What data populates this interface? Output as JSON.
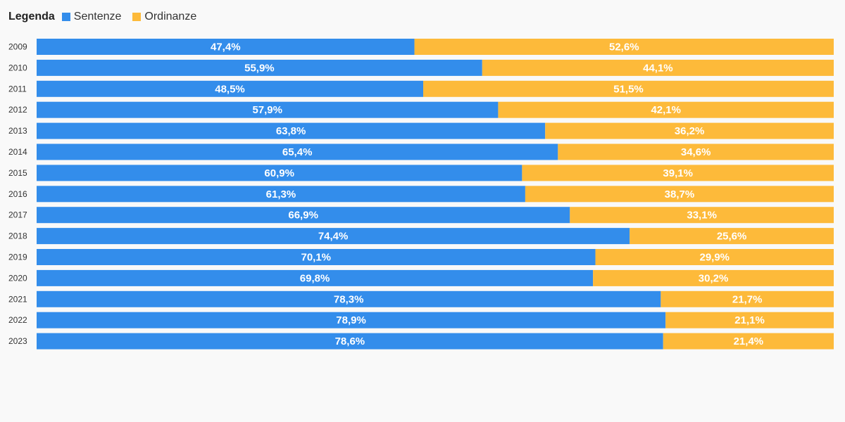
{
  "legend": {
    "title": "Legenda",
    "items": [
      {
        "label": "Sentenze",
        "color": "#338deb"
      },
      {
        "label": "Ordinanze",
        "color": "#fdba3a"
      }
    ]
  },
  "chart_data": {
    "type": "bar",
    "orientation": "horizontal",
    "stacked": true,
    "normalized_percent": true,
    "categories": [
      "2009",
      "2010",
      "2011",
      "2012",
      "2013",
      "2014",
      "2015",
      "2016",
      "2017",
      "2018",
      "2019",
      "2020",
      "2021",
      "2022",
      "2023"
    ],
    "series": [
      {
        "name": "Sentenze",
        "color": "#338deb",
        "values": [
          47.4,
          55.9,
          48.5,
          57.9,
          63.8,
          65.4,
          60.9,
          61.3,
          66.9,
          74.4,
          70.1,
          69.8,
          78.3,
          78.9,
          78.6
        ],
        "labels": [
          "47,4%",
          "55,9%",
          "48,5%",
          "57,9%",
          "63,8%",
          "65,4%",
          "60,9%",
          "61,3%",
          "66,9%",
          "74,4%",
          "70,1%",
          "69,8%",
          "78,3%",
          "78,9%",
          "78,6%"
        ]
      },
      {
        "name": "Ordinanze",
        "color": "#fdba3a",
        "values": [
          52.6,
          44.1,
          51.5,
          42.1,
          36.2,
          34.6,
          39.1,
          38.7,
          33.1,
          25.6,
          29.9,
          30.2,
          21.7,
          21.1,
          21.4
        ],
        "labels": [
          "52,6%",
          "44,1%",
          "51,5%",
          "42,1%",
          "36,2%",
          "34,6%",
          "39,1%",
          "38,7%",
          "33,1%",
          "25,6%",
          "29,9%",
          "30,2%",
          "21,7%",
          "21,1%",
          "21,4%"
        ]
      }
    ],
    "xlim": [
      0,
      100
    ],
    "grid": false,
    "legend_position": "top-left"
  }
}
